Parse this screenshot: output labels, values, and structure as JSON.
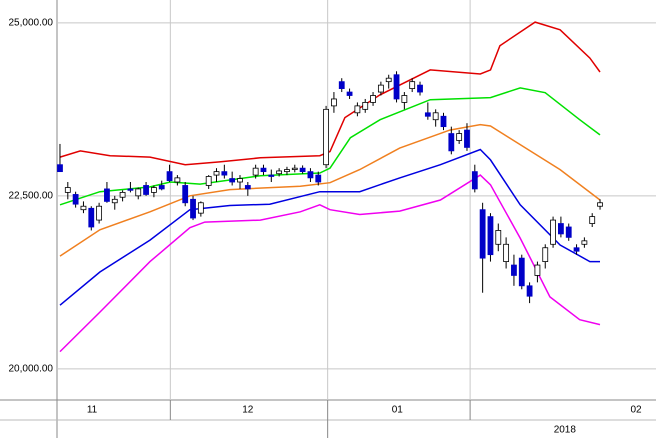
{
  "chart_data": {
    "type": "candlestick",
    "x": [
      0,
      1,
      2,
      3,
      4,
      5,
      6,
      7,
      8,
      9,
      10,
      11,
      12,
      13,
      14,
      15,
      16,
      17,
      18,
      19,
      20,
      21,
      22,
      23,
      24,
      25,
      26,
      27,
      28,
      29,
      30,
      31,
      32,
      33,
      34,
      35,
      36,
      37,
      38,
      39,
      40,
      41,
      42,
      43,
      44,
      45,
      46,
      47,
      48,
      49,
      50,
      51,
      52,
      53,
      54,
      55,
      56,
      57,
      58,
      59,
      60,
      61,
      62,
      63,
      64,
      65,
      66,
      67,
      68,
      69
    ],
    "open": [
      22950,
      22550,
      22520,
      22300,
      22320,
      22150,
      22600,
      22400,
      22480,
      22600,
      22500,
      22650,
      22550,
      22650,
      22850,
      22700,
      22650,
      22450,
      22250,
      22650,
      22800,
      22850,
      22750,
      22700,
      22650,
      22800,
      22900,
      22800,
      22820,
      22850,
      22880,
      22900,
      22850,
      22800,
      22950,
      23800,
      24150,
      24000,
      23700,
      23750,
      23850,
      24000,
      24150,
      24250,
      23850,
      24050,
      24100,
      23700,
      23600,
      23650,
      23400,
      23300,
      23450,
      22850,
      22300,
      22200,
      21800,
      21550,
      21500,
      21600,
      21200,
      21350,
      21550,
      21800,
      22100,
      22050,
      21750,
      21800,
      22100,
      22350
    ],
    "high": [
      23250,
      22700,
      22560,
      22420,
      22350,
      22400,
      22700,
      22500,
      22580,
      22700,
      22620,
      22700,
      22650,
      22720,
      22950,
      22800,
      22700,
      22500,
      22420,
      22800,
      22900,
      22950,
      22850,
      22800,
      22700,
      22950,
      22950,
      22880,
      22900,
      22920,
      22950,
      22940,
      22900,
      22850,
      23800,
      24000,
      24200,
      24050,
      23850,
      23900,
      24000,
      24150,
      24250,
      24300,
      24000,
      24200,
      24150,
      23850,
      23750,
      23700,
      23500,
      23450,
      23550,
      22950,
      22400,
      22250,
      22100,
      21900,
      21650,
      21650,
      21250,
      21550,
      21800,
      22200,
      22200,
      22100,
      21800,
      21900,
      22250,
      22450
    ],
    "low": [
      22850,
      22450,
      22330,
      22250,
      22000,
      22100,
      22400,
      22300,
      22420,
      22550,
      22450,
      22500,
      22480,
      22580,
      22700,
      22650,
      22350,
      22150,
      22200,
      22600,
      22700,
      22750,
      22650,
      22600,
      22500,
      22750,
      22800,
      22700,
      22780,
      22800,
      22840,
      22820,
      22700,
      22650,
      22900,
      23700,
      24000,
      23900,
      23650,
      23700,
      23800,
      23950,
      24050,
      23850,
      23750,
      24000,
      23950,
      23600,
      23500,
      23450,
      23100,
      23250,
      23150,
      22550,
      21100,
      21550,
      21700,
      21450,
      21200,
      21150,
      20950,
      21250,
      21450,
      21750,
      21900,
      21850,
      21650,
      21750,
      22050,
      22300
    ],
    "close": [
      22850,
      22620,
      22380,
      22350,
      22050,
      22350,
      22420,
      22450,
      22550,
      22580,
      22600,
      22520,
      22620,
      22600,
      22720,
      22760,
      22400,
      22180,
      22400,
      22780,
      22850,
      22800,
      22700,
      22750,
      22600,
      22900,
      22850,
      22780,
      22860,
      22880,
      22900,
      22850,
      22760,
      22700,
      23750,
      23900,
      24050,
      23950,
      23800,
      23850,
      23950,
      24100,
      24200,
      23900,
      23950,
      24150,
      24000,
      23650,
      23700,
      23500,
      23150,
      23400,
      23200,
      22600,
      21600,
      21650,
      22000,
      21800,
      21350,
      21200,
      21050,
      21500,
      21750,
      22150,
      21950,
      21900,
      21700,
      21850,
      22200,
      22400
    ],
    "up_color": "#ffffff",
    "down_color": "#0000c8",
    "lines": [
      {
        "color": "#e00000",
        "x": [
          0,
          2.6,
          6.4,
          11.5,
          16,
          20.4,
          25.6,
          33.2,
          34.5,
          36.4,
          40.9,
          47.3,
          53.7,
          55,
          56.2,
          60.7,
          63.9,
          67.7,
          69
        ],
        "values": [
          23060,
          23150,
          23080,
          23060,
          22950,
          22990,
          23050,
          23080,
          23140,
          23630,
          23960,
          24320,
          24260,
          24320,
          24670,
          25010,
          24900,
          24490,
          24290
        ]
      },
      {
        "color": "#00e000",
        "x": [
          0,
          5.1,
          11.5,
          14.1,
          17.9,
          25.6,
          33.2,
          34.5,
          37.1,
          40.9,
          47.3,
          55,
          58.8,
          62,
          66.4,
          69
        ],
        "values": [
          22370,
          22560,
          22630,
          22700,
          22670,
          22790,
          22830,
          22900,
          23340,
          23600,
          23890,
          23920,
          24060,
          23990,
          23600,
          23380
        ]
      },
      {
        "color": "#f08020",
        "x": [
          0,
          5.1,
          11.5,
          16.6,
          21.7,
          30.7,
          34.5,
          38.3,
          43.4,
          49.8,
          53.7,
          55,
          58.8,
          63.9,
          69
        ],
        "values": [
          21630,
          22010,
          22270,
          22500,
          22590,
          22640,
          22690,
          22880,
          23190,
          23450,
          23530,
          23510,
          23240,
          22880,
          22440
        ]
      },
      {
        "color": "#0000e0",
        "x": [
          0,
          5.1,
          11.5,
          16.6,
          21.7,
          26.8,
          33.2,
          38.3,
          43.4,
          48.6,
          53.7,
          55,
          58.8,
          63.9,
          67.7,
          69
        ],
        "values": [
          20920,
          21400,
          21860,
          22300,
          22360,
          22380,
          22560,
          22560,
          22760,
          22950,
          23170,
          23020,
          22370,
          21790,
          21550,
          21550
        ]
      },
      {
        "color": "#f000f0",
        "x": [
          0,
          5.1,
          11.5,
          16.6,
          18.5,
          25.6,
          30.7,
          33.2,
          34.5,
          38.3,
          43.4,
          48.6,
          53.7,
          55,
          58.8,
          62.6,
          66.4,
          69
        ],
        "values": [
          20250,
          20820,
          21550,
          22040,
          22120,
          22150,
          22270,
          22370,
          22300,
          22230,
          22280,
          22440,
          22800,
          22660,
          21890,
          21040,
          20710,
          20640
        ]
      }
    ],
    "xlim": [
      -0.38,
      76.15
    ],
    "ylim": [
      19550,
      25330
    ],
    "yticks": [
      {
        "value": 25000,
        "label": "25,000.00"
      },
      {
        "value": 22500,
        "label": "22,500.00"
      },
      {
        "value": 20000,
        "label": "20,000.00"
      }
    ],
    "month_boundaries": [
      14.1,
      34.2,
      52.4
    ],
    "year_boundaries": [
      34.2
    ],
    "xticks": [
      {
        "value": 4.1,
        "label": "11"
      },
      {
        "value": 24,
        "label": "12"
      },
      {
        "value": 43.1,
        "label": "01"
      },
      {
        "value": 73.6,
        "label": "02"
      }
    ],
    "year_labels": [
      {
        "value": 64.5,
        "label": "2018"
      }
    ],
    "grid": true
  }
}
